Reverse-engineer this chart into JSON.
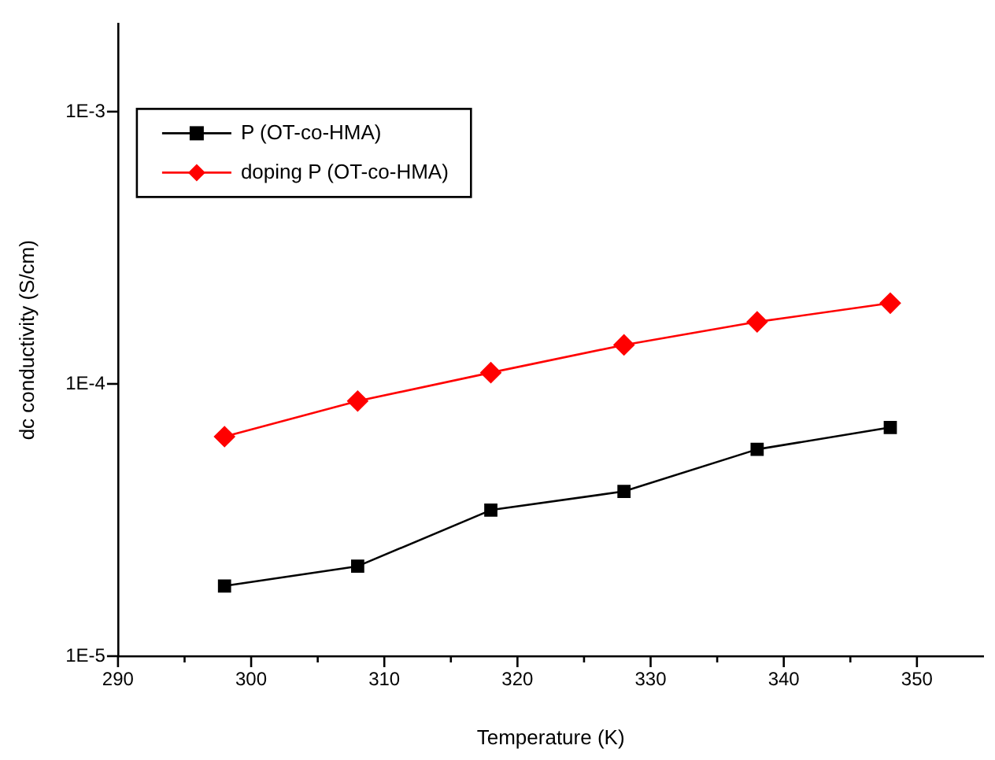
{
  "chart_data": {
    "type": "line",
    "xlabel": "Temperature (K)",
    "ylabel": "dc conductivity (S/cm)",
    "x": [
      298,
      308,
      318,
      328,
      338,
      348
    ],
    "series": [
      {
        "name": "P (OT-co-HMA)",
        "color": "#000000",
        "marker": "square",
        "values": [
          1.81e-05,
          2.14e-05,
          3.44e-05,
          4.03e-05,
          5.75e-05,
          6.92e-05
        ]
      },
      {
        "name": "doping P (OT-co-HMA)",
        "color": "#ff0000",
        "marker": "diamond",
        "values": [
          6.4e-05,
          8.65e-05,
          0.00011,
          0.000139,
          0.000169,
          0.000198
        ]
      }
    ],
    "log": "y",
    "xlim": [
      290,
      355
    ],
    "ylim": [
      1e-05,
      0.0021
    ],
    "xticks": [
      290,
      {
        "value": 295,
        "label": null
      },
      300,
      {
        "value": 305,
        "label": null
      },
      310,
      {
        "value": 315,
        "label": null
      },
      320,
      {
        "value": 325,
        "label": null
      },
      330,
      {
        "value": 335,
        "label": null
      },
      340,
      {
        "value": 345,
        "label": null
      },
      350
    ],
    "yticks": [
      {
        "value": 1e-05,
        "label": "1E-5"
      },
      {
        "value": 0.0001,
        "label": "1E-4"
      },
      {
        "value": 0.001,
        "label": "1E-3"
      }
    ],
    "grid": false,
    "legend": "top left"
  }
}
